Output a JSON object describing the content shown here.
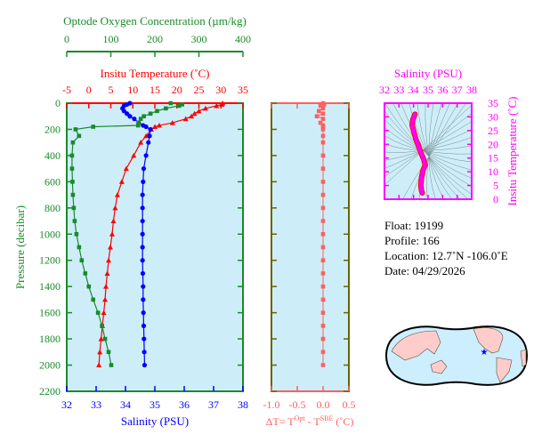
{
  "chart_data": [
    {
      "type": "line",
      "ylabel": "Pressure (decibar)",
      "ylim": [
        2200,
        0
      ],
      "yticks": [
        "0",
        "200",
        "400",
        "600",
        "800",
        "1000",
        "1200",
        "1400",
        "1600",
        "1800",
        "2000",
        "2200"
      ],
      "pressure": [
        0,
        10,
        20,
        40,
        60,
        80,
        100,
        120,
        150,
        170,
        180,
        200,
        250,
        300,
        400,
        500,
        600,
        700,
        800,
        900,
        1000,
        1100,
        1200,
        1300,
        1400,
        1500,
        1600,
        1700,
        1800,
        1900,
        2000
      ],
      "axes": {
        "oxygen": {
          "label": "Optode Oxygen Concentration (µm/kg)",
          "range": [
            0,
            400
          ],
          "ticks": [
            "0",
            "100",
            "200",
            "300",
            "400"
          ],
          "color": "#1a8a2a"
        },
        "temperature": {
          "label": "Insitu Temperature (˚C)",
          "range": [
            -5,
            35
          ],
          "ticks": [
            "-5",
            "0",
            "5",
            "10",
            "15",
            "20",
            "25",
            "30",
            "35"
          ],
          "color": "#ff0000"
        },
        "salinity": {
          "label": "Salinity (PSU)",
          "range": [
            32,
            38
          ],
          "ticks": [
            "32",
            "33",
            "34",
            "35",
            "36",
            "37",
            "38"
          ],
          "color": "#0000ff"
        }
      },
      "series": [
        {
          "key": "temperature",
          "color": "#ff0000",
          "marker": "triangle",
          "values": [
            30.4,
            30.2,
            29,
            26.5,
            25,
            24,
            23.3,
            22,
            19,
            16,
            15,
            14.2,
            13,
            11.8,
            10.2,
            8.5,
            7.5,
            6.5,
            6.0,
            5.6,
            5.3,
            4.9,
            4.5,
            4.2,
            3.9,
            3.7,
            3.4,
            3.1,
            2.8,
            2.5,
            2.3
          ]
        },
        {
          "key": "salinity",
          "color": "#0000ff",
          "marker": "circle",
          "values": [
            34.15,
            34.05,
            33.95,
            33.9,
            33.95,
            34.05,
            34.15,
            34.3,
            34.45,
            34.6,
            34.7,
            34.85,
            34.82,
            34.78,
            34.7,
            34.62,
            34.6,
            34.58,
            34.58,
            34.58,
            34.58,
            34.58,
            34.58,
            34.59,
            34.6,
            34.6,
            34.61,
            34.62,
            34.63,
            34.64,
            34.65
          ]
        },
        {
          "key": "oxygen",
          "color": "#1a8a2a",
          "marker": "square",
          "values": [
            236,
            262,
            255,
            225,
            205,
            190,
            175,
            168,
            163,
            162,
            60,
            20,
            28,
            14,
            12,
            12,
            13,
            14,
            16,
            18,
            22,
            28,
            34,
            42,
            50,
            60,
            71,
            80,
            87,
            95,
            101
          ]
        }
      ]
    },
    {
      "type": "line",
      "xlabel": "ΔT= T^Opt - T^SBE (˚C)",
      "xlabel_parts": {
        "base": "ΔT= T",
        "sup1": "Opt",
        "mid": " - T",
        "sup2": "SBE",
        "end": " (˚C)"
      },
      "xlim": [
        -1.0,
        0.5
      ],
      "xticks": [
        "-1.0",
        "-0.5",
        "0.0",
        "0.5"
      ],
      "color": "#ff6060",
      "values": [
        0,
        0.02,
        -0.05,
        0,
        -0.08,
        0,
        -0.12,
        0,
        -0.05,
        0,
        0,
        0,
        0,
        0,
        0,
        0,
        0,
        0,
        0,
        0,
        0,
        0,
        0,
        0,
        0,
        0,
        0,
        0,
        0,
        0,
        0
      ]
    },
    {
      "type": "line",
      "xlabel": "Salinity (PSU)",
      "ylabel": "Insitu Temperature (˚C)",
      "xlim": [
        32,
        38
      ],
      "ylim": [
        0,
        35
      ],
      "xticks": [
        "32",
        "33",
        "34",
        "35",
        "36",
        "37",
        "38"
      ],
      "yticks": [
        "0",
        "5",
        "10",
        "15",
        "20",
        "25",
        "30",
        "35"
      ],
      "color": "#ff00ff",
      "points": [
        [
          34.1,
          31
        ],
        [
          33.95,
          29
        ],
        [
          33.9,
          27
        ],
        [
          34.0,
          25
        ],
        [
          34.15,
          22
        ],
        [
          34.3,
          20
        ],
        [
          34.5,
          17
        ],
        [
          34.7,
          14.5
        ],
        [
          34.8,
          12.5
        ],
        [
          34.65,
          10.5
        ],
        [
          34.55,
          8
        ],
        [
          34.5,
          5
        ],
        [
          34.55,
          3
        ],
        [
          34.6,
          2.3
        ]
      ]
    }
  ],
  "info": {
    "float": "Float:  19199",
    "profile": "Profile:  166",
    "location": "Location:  12.7˚N  -106.0˚E",
    "date": "Date:  04/29/2026"
  },
  "map": {
    "marker_lat": 12.7,
    "marker_lon": -106.0,
    "marker_color": "#0000ff",
    "ocean_color": "#cceeff",
    "land_color": "#ffcccc"
  },
  "colors": {
    "plot_bg": "#cdeef8",
    "oxygen": "#1a8a2a",
    "temperature": "#ff0000",
    "salinity": "#0000ff",
    "deltaT": "#ff6060",
    "ts": "#ff00ff",
    "dt_frame": "#666600"
  }
}
